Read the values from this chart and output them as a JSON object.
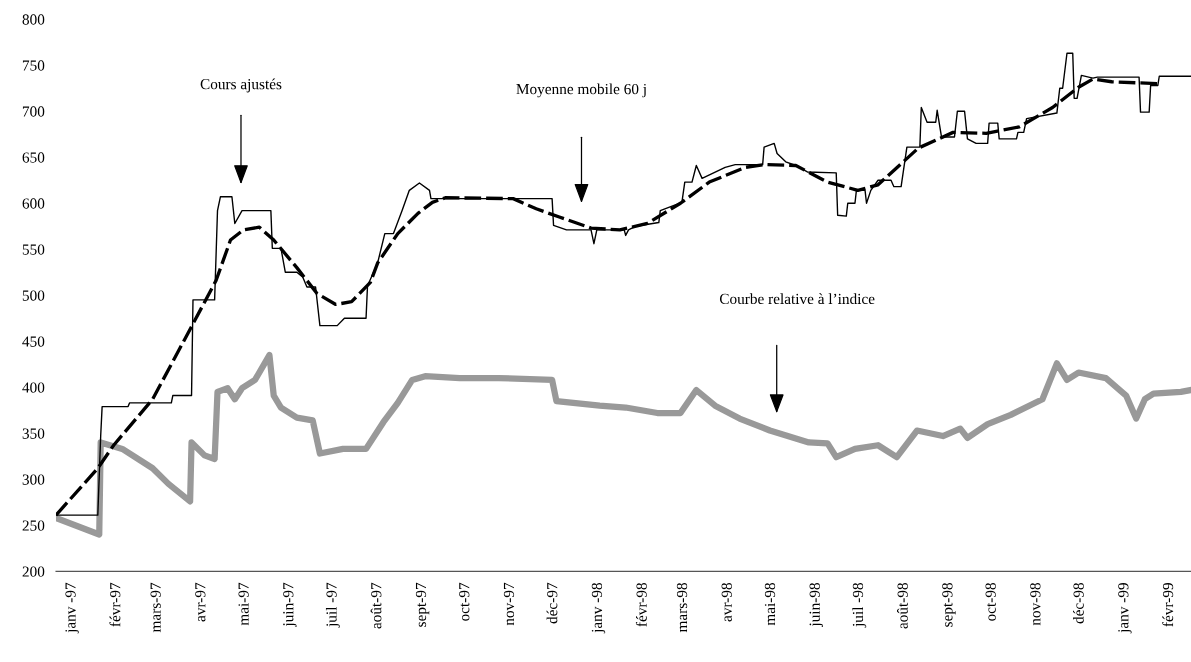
{
  "chart_data": {
    "type": "line",
    "xticks": [
      {
        "value": "1997-01-01",
        "label": "janv -97"
      },
      {
        "value": "1997-02-01",
        "label": "févr-97"
      },
      {
        "value": "1997-03-01",
        "label": "mars-97"
      },
      {
        "value": "1997-04-01",
        "label": "avr-97"
      },
      {
        "value": "1997-05-01",
        "label": "mai-97"
      },
      {
        "value": "1997-06-01",
        "label": "juin-97"
      },
      {
        "value": "1997-07-01",
        "label": "juil -97"
      },
      {
        "value": "1997-08-01",
        "label": "août-97"
      },
      {
        "value": "1997-09-01",
        "label": "sept-97"
      },
      {
        "value": "1997-10-01",
        "label": "oct-97"
      },
      {
        "value": "1997-11-01",
        "label": "nov-97"
      },
      {
        "value": "1997-12-01",
        "label": "déc-97"
      },
      {
        "value": "1998-01-01",
        "label": "janv -98"
      },
      {
        "value": "1998-02-01",
        "label": "févr-98"
      },
      {
        "value": "1998-03-01",
        "label": "mars-98"
      },
      {
        "value": "1998-04-01",
        "label": "avr-98"
      },
      {
        "value": "1998-05-01",
        "label": "mai-98"
      },
      {
        "value": "1998-06-01",
        "label": "juin-98"
      },
      {
        "value": "1998-07-01",
        "label": "juil -98"
      },
      {
        "value": "1998-08-01",
        "label": "août-98"
      },
      {
        "value": "1998-09-01",
        "label": "sept-98"
      },
      {
        "value": "1998-10-01",
        "label": "oct-98"
      },
      {
        "value": "1998-11-01",
        "label": "nov-98"
      },
      {
        "value": "1998-12-01",
        "label": "déc-98"
      },
      {
        "value": "1999-01-01",
        "label": "janv -99"
      },
      {
        "value": "1999-02-01",
        "label": "févr-99"
      }
    ],
    "xlim": [
      "1996-12-21",
      "1999-02-16"
    ],
    "ylim": [
      200,
      800
    ],
    "yticks": [
      200,
      250,
      300,
      350,
      400,
      450,
      500,
      550,
      600,
      650,
      700,
      750,
      800
    ],
    "grid": false,
    "marker": "none",
    "annotations": [
      "Cours ajustés",
      "Moyenne mobile 60 j",
      "Courbe relative à l’indice"
    ],
    "series": [
      {
        "color": "#000000",
        "line_style": "solid",
        "x": [
          "1996-12-21",
          "1997-01-19",
          "1997-01-21",
          "1997-01-22",
          "1997-02-09",
          "1997-02-10",
          "1997-03-11",
          "1997-03-12",
          "1997-03-25",
          "1997-03-26",
          "1997-04-10",
          "1997-04-12",
          "1997-04-14",
          "1997-04-22",
          "1997-04-24",
          "1997-04-29",
          "1997-05-19",
          "1997-05-20",
          "1997-05-26",
          "1997-05-29",
          "1997-06-06",
          "1997-06-10",
          "1997-06-13",
          "1997-06-19",
          "1997-06-22",
          "1997-07-04",
          "1997-07-09",
          "1997-07-24",
          "1997-07-25",
          "1997-08-01",
          "1997-08-06",
          "1997-08-12",
          "1997-08-18",
          "1997-08-23",
          "1997-08-30",
          "1997-09-06",
          "1997-09-07",
          "1997-11-30",
          "1997-12-01",
          "1997-12-10",
          "1997-12-27",
          "1997-12-29",
          "1997-12-31",
          "1998-01-19",
          "1998-01-20",
          "1998-01-22",
          "1998-01-27",
          "1998-02-12",
          "1998-02-13",
          "1998-02-28",
          "1998-03-02",
          "1998-03-07",
          "1998-03-10",
          "1998-03-14",
          "1998-03-30",
          "1998-04-06",
          "1998-04-25",
          "1998-04-26",
          "1998-05-03",
          "1998-05-05",
          "1998-05-11",
          "1998-05-18",
          "1998-05-26",
          "1998-06-15",
          "1998-06-16",
          "1998-06-22",
          "1998-06-23",
          "1998-06-28",
          "1998-06-29",
          "1998-07-05",
          "1998-07-06",
          "1998-07-09",
          "1998-07-14",
          "1998-07-23",
          "1998-07-25",
          "1998-07-30",
          "1998-08-03",
          "1998-08-12",
          "1998-08-13",
          "1998-08-17",
          "1998-08-23",
          "1998-08-24",
          "1998-08-27",
          "1998-09-05",
          "1998-09-07",
          "1998-09-12",
          "1998-09-14",
          "1998-09-20",
          "1998-09-28",
          "1998-09-29",
          "1998-10-05",
          "1998-10-06",
          "1998-10-18",
          "1998-10-19",
          "1998-10-23",
          "1998-10-25",
          "1998-11-15",
          "1998-11-17",
          "1998-11-19",
          "1998-11-22",
          "1998-11-26",
          "1998-11-27",
          "1998-11-29",
          "1998-12-02",
          "1998-12-10",
          "1998-12-13",
          "1999-01-11",
          "1999-01-12",
          "1999-01-18",
          "1999-01-19",
          "1999-01-24",
          "1999-01-25",
          "1999-02-16"
        ],
        "values": [
          261,
          261,
          347,
          379,
          379,
          383,
          383,
          391,
          391,
          495,
          495,
          592,
          607,
          607,
          578,
          592,
          592,
          551,
          551,
          525,
          525,
          520,
          509,
          509,
          467,
          467,
          475,
          475,
          510,
          535,
          567,
          567,
          592,
          614,
          622,
          614,
          605,
          605,
          576,
          571,
          571,
          556,
          571,
          571,
          565,
          571,
          575,
          579,
          592,
          601,
          623,
          623,
          641,
          627,
          639,
          642,
          642,
          661,
          665,
          654,
          645,
          641,
          634,
          633,
          587,
          586,
          600,
          600,
          614,
          614,
          600,
          614,
          625,
          625,
          618,
          618,
          661,
          661,
          704,
          688,
          688,
          701,
          672,
          672,
          700,
          700,
          670,
          665,
          665,
          687,
          687,
          670,
          670,
          677,
          677,
          692,
          698,
          725,
          725,
          763,
          763,
          714,
          714,
          739,
          736,
          737,
          737,
          699,
          699,
          728,
          728,
          738,
          738
        ]
      },
      {
        "color": "#000000",
        "line_style": "dashed",
        "x": [
          "1996-12-21",
          "1997-01-19",
          "1997-01-30",
          "1997-02-26",
          "1997-03-25",
          "1997-04-11",
          "1997-04-21",
          "1997-04-30",
          "1997-05-11",
          "1997-05-21",
          "1997-06-06",
          "1997-06-20",
          "1997-07-03",
          "1997-07-14",
          "1997-07-27",
          "1997-08-01",
          "1997-08-15",
          "1997-08-29",
          "1997-09-08",
          "1997-09-17",
          "1997-11-03",
          "1997-11-19",
          "1997-12-05",
          "1997-12-27",
          "1998-01-16",
          "1998-02-04",
          "1998-02-27",
          "1998-03-19",
          "1998-04-13",
          "1998-04-26",
          "1998-05-18",
          "1998-06-09",
          "1998-06-30",
          "1998-07-14",
          "1998-08-11",
          "1998-09-04",
          "1998-09-27",
          "1998-10-20",
          "1998-11-12",
          "1998-11-30",
          "1998-12-10",
          "1998-12-23",
          "1999-01-24"
        ],
        "values": [
          261,
          312,
          337,
          387,
          466,
          516,
          560,
          571,
          574,
          560,
          530,
          502,
          490,
          493,
          514,
          535,
          567,
          589,
          601,
          606,
          605,
          594,
          585,
          573,
          571,
          578,
          600,
          623,
          639,
          642,
          641,
          623,
          614,
          620,
          660,
          677,
          676,
          683,
          704,
          726,
          735,
          732,
          730
        ]
      },
      {
        "color": "#999999",
        "line_style": "solid",
        "x": [
          "1996-12-21",
          "1997-01-20",
          "1997-01-21",
          "1997-02-05",
          "1997-02-26",
          "1997-03-09",
          "1997-03-24",
          "1997-03-25",
          "1997-04-03",
          "1997-04-10",
          "1997-04-12",
          "1997-04-19",
          "1997-04-24",
          "1997-04-29",
          "1997-05-08",
          "1997-05-18",
          "1997-05-21",
          "1997-05-26",
          "1997-06-06",
          "1997-06-17",
          "1997-06-22",
          "1997-07-08",
          "1997-07-24",
          "1997-08-05",
          "1997-08-15",
          "1997-08-25",
          "1997-09-03",
          "1997-09-27",
          "1997-10-24",
          "1997-11-30",
          "1997-12-03",
          "1998-01-02",
          "1998-01-20",
          "1998-02-11",
          "1998-02-27",
          "1998-03-10",
          "1998-03-23",
          "1998-04-09",
          "1998-04-30",
          "1998-05-27",
          "1998-06-09",
          "1998-06-15",
          "1998-06-28",
          "1998-07-14",
          "1998-07-27",
          "1998-08-10",
          "1998-08-28",
          "1998-09-09",
          "1998-09-14",
          "1998-09-28",
          "1998-10-14",
          "1998-11-05",
          "1998-11-15",
          "1998-11-22",
          "1998-11-30",
          "1998-12-19",
          "1999-01-02",
          "1999-01-09",
          "1999-01-15",
          "1999-01-21",
          "1999-02-09",
          "1999-02-16"
        ],
        "values": [
          258,
          240,
          340,
          333,
          312,
          295,
          276,
          340,
          326,
          322,
          395,
          399,
          387,
          399,
          408,
          435,
          391,
          378,
          367,
          364,
          328,
          333,
          333,
          362,
          383,
          408,
          412,
          410,
          410,
          408,
          385,
          380,
          378,
          372,
          372,
          397,
          380,
          366,
          353,
          340,
          339,
          324,
          333,
          337,
          324,
          353,
          347,
          355,
          345,
          360,
          370,
          387,
          426,
          408,
          416,
          410,
          391,
          366,
          387,
          393,
          395,
          397
        ]
      }
    ]
  }
}
